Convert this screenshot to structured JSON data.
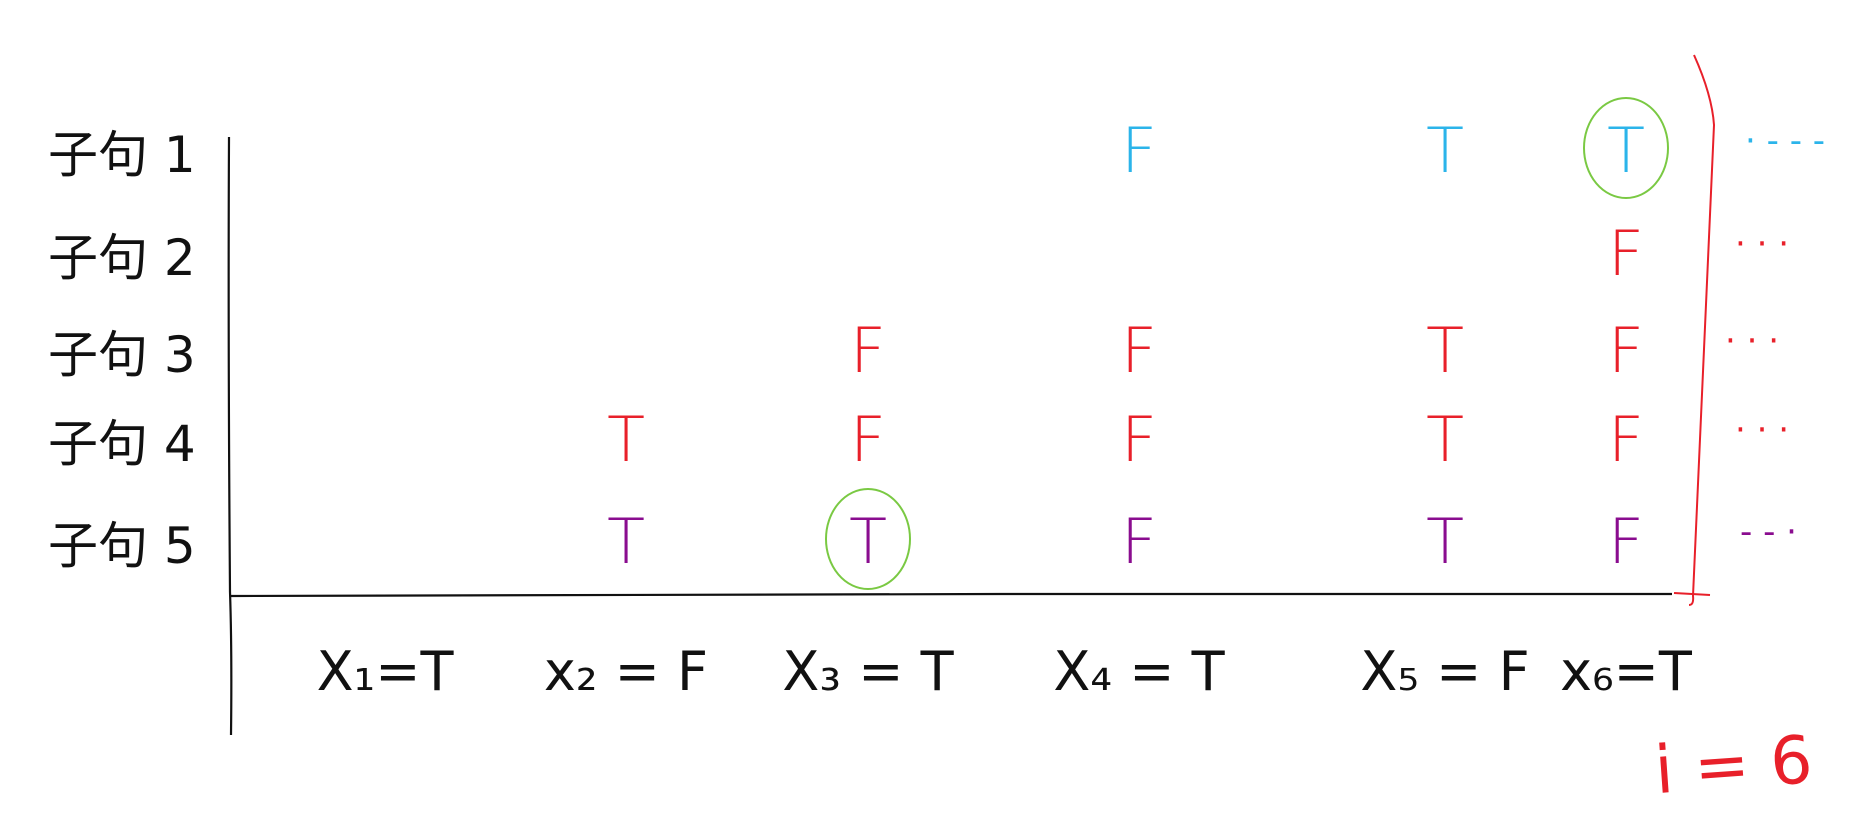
{
  "colors": {
    "ink": "#111111",
    "blue": "#2bb4ea",
    "red": "#e8202a",
    "purple": "#8a0c8f",
    "green": "#7ac943"
  },
  "rows": [
    {
      "label": "子句 1",
      "color": "#2bb4ea",
      "cells": [
        null,
        null,
        null,
        "F",
        "T",
        "T"
      ],
      "circled": 5,
      "dots": "· - - -"
    },
    {
      "label": "子句 2",
      "color": "#e8202a",
      "cells": [
        null,
        null,
        null,
        null,
        null,
        "F"
      ],
      "circled": null,
      "dots": "· · ·"
    },
    {
      "label": "子句 3",
      "color": "#e8202a",
      "cells": [
        null,
        null,
        "F",
        "F",
        "T",
        "F"
      ],
      "circled": null,
      "dots": "· · ·"
    },
    {
      "label": "子句 4",
      "color": "#e8202a",
      "cells": [
        null,
        "T",
        "F",
        "F",
        "T",
        "F"
      ],
      "circled": null,
      "dots": "· · ·"
    },
    {
      "label": "子句 5",
      "color": "#8a0c8f",
      "cells": [
        null,
        "T",
        "T",
        "F",
        "T",
        "F"
      ],
      "circled": 2,
      "dots": "- - ·"
    }
  ],
  "columns": [
    {
      "label": "X₁=T"
    },
    {
      "label": "x₂ = F"
    },
    {
      "label": "X₃ = T"
    },
    {
      "label": "X₄ = T"
    },
    {
      "label": "X₅ = F"
    },
    {
      "label": "x₆=T"
    }
  ],
  "index_label": "i = 6"
}
